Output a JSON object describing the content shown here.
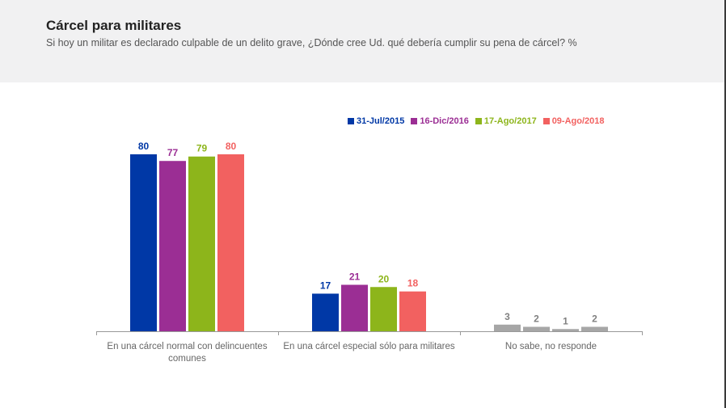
{
  "header": {
    "title": "Cárcel para militares",
    "subtitle": "Si hoy un militar es declarado culpable de un delito grave, ¿Dónde cree Ud. qué debería cumplir su pena de cárcel? %"
  },
  "colors": {
    "series": [
      "#0038a6",
      "#9b2e94",
      "#8db51b",
      "#f26160"
    ],
    "nsnr_bar": "#a6a6a6",
    "nsnr_label": "#808080",
    "axis": "#999999",
    "category_text": "#666666"
  },
  "chart_data": {
    "type": "bar",
    "title": "Cárcel para militares",
    "categories": [
      "En una cárcel normal con delincuentes comunes",
      "En una cárcel especial sólo para militares",
      "No sabe, no responde"
    ],
    "category_lines": [
      [
        "En una cárcel normal con delincuentes",
        "comunes"
      ],
      [
        "En una cárcel especial sólo para militares"
      ],
      [
        "No sabe, no responde"
      ]
    ],
    "series": [
      {
        "name": "31-Jul/2015",
        "values": [
          80,
          17,
          3
        ]
      },
      {
        "name": "16-Dic/2016",
        "values": [
          77,
          21,
          2
        ]
      },
      {
        "name": "17-Ago/2017",
        "values": [
          79,
          20,
          1
        ]
      },
      {
        "name": "09-Ago/2018",
        "values": [
          80,
          18,
          2
        ]
      }
    ],
    "ylim": [
      0,
      80
    ],
    "legend_position": "top-right",
    "grid": false,
    "data_labels": true
  }
}
